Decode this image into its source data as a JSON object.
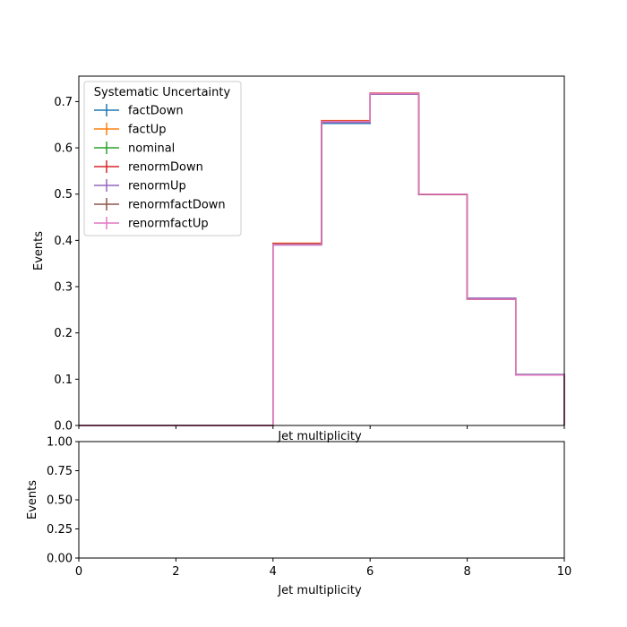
{
  "chart_data": [
    {
      "type": "line",
      "drawstyle": "steps",
      "title": "",
      "xlabel": "Jet multiplicity",
      "ylabel": "Events",
      "xlim": [
        0,
        10
      ],
      "ylim": [
        0,
        0.755
      ],
      "yticks": [
        "0.0",
        "0.1",
        "0.2",
        "0.3",
        "0.4",
        "0.5",
        "0.6",
        "0.7"
      ],
      "ytick_values": [
        0,
        0.1,
        0.2,
        0.3,
        0.4,
        0.5,
        0.6,
        0.7
      ],
      "bin_edges": [
        0,
        1,
        2,
        3,
        4,
        5,
        6,
        7,
        8,
        9,
        10
      ],
      "grid": false,
      "legend": {
        "title": "Systematic Uncertainty",
        "placement": "upper-left"
      },
      "series": [
        {
          "name": "factDown",
          "color": "#1f77b4",
          "values": [
            0,
            0,
            0,
            0,
            0.391,
            0.653,
            0.716,
            0.5,
            0.275,
            0.11
          ]
        },
        {
          "name": "factUp",
          "color": "#ff7f0e",
          "values": [
            0,
            0,
            0,
            0,
            0.394,
            0.659,
            0.718,
            0.5,
            0.273,
            0.109
          ]
        },
        {
          "name": "nominal",
          "color": "#2ca02c",
          "values": [
            0,
            0,
            0,
            0,
            0.392,
            0.656,
            0.717,
            0.5,
            0.274,
            0.11
          ]
        },
        {
          "name": "renormDown",
          "color": "#d62728",
          "values": [
            0,
            0,
            0,
            0,
            0.393,
            0.658,
            0.718,
            0.499,
            0.273,
            0.109
          ]
        },
        {
          "name": "renormUp",
          "color": "#9467bd",
          "values": [
            0,
            0,
            0,
            0,
            0.39,
            0.655,
            0.716,
            0.5,
            0.275,
            0.11
          ]
        },
        {
          "name": "renormfactDown",
          "color": "#8c564b",
          "values": [
            0,
            0,
            0,
            0,
            0.392,
            0.657,
            0.717,
            0.499,
            0.273,
            0.109
          ]
        },
        {
          "name": "renormfactUp",
          "color": "#e377c2",
          "values": [
            0,
            0,
            0,
            0,
            0.391,
            0.657,
            0.717,
            0.5,
            0.273,
            0.109
          ]
        }
      ]
    },
    {
      "type": "line",
      "title": "",
      "xlabel": "Jet multiplicity",
      "ylabel": "Events",
      "xlim": [
        0,
        10
      ],
      "ylim": [
        0,
        1
      ],
      "xticks": [
        "0",
        "2",
        "4",
        "6",
        "8",
        "10"
      ],
      "xtick_values": [
        0,
        2,
        4,
        6,
        8,
        10
      ],
      "yticks": [
        "0.00",
        "0.25",
        "0.50",
        "0.75",
        "1.00"
      ],
      "ytick_values": [
        0,
        0.25,
        0.5,
        0.75,
        1.0
      ],
      "grid": false,
      "series": []
    }
  ]
}
